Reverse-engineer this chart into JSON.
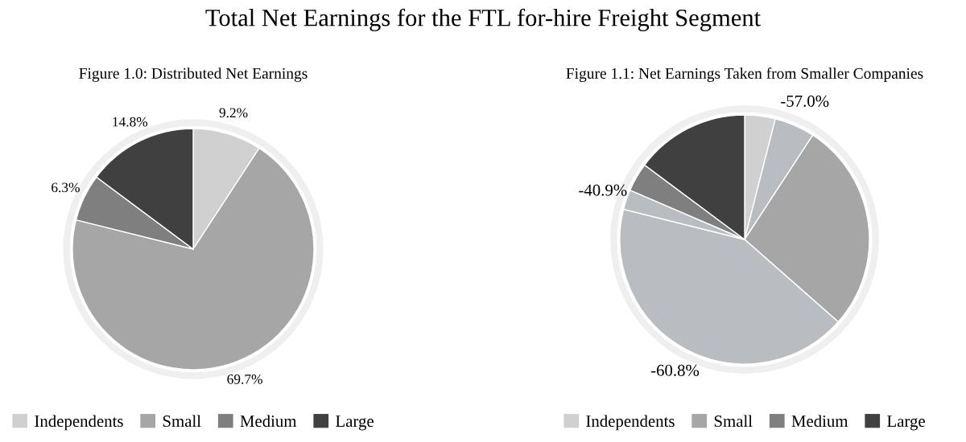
{
  "chart_data": [
    {
      "type": "pie",
      "title": "Total Net Earnings for the FTL for-hire Freight Segment",
      "subtitle": "Figure 1.0: Distributed Net Earnings",
      "categories": [
        "Independents",
        "Small",
        "Medium",
        "Large"
      ],
      "values": [
        9.2,
        69.7,
        6.3,
        14.8
      ],
      "colors": [
        "#d0d0d0",
        "#a6a6a6",
        "#7f7f7f",
        "#404040"
      ],
      "value_labels": [
        "9.2%",
        "69.7%",
        "6.3%",
        "14.8%"
      ],
      "legend": "bottom"
    },
    {
      "type": "pie",
      "subtitle": "Figure 1.1: Net Earnings Taken from Smaller Companies",
      "categories": [
        "Independents",
        null,
        "Small",
        null,
        null,
        "Medium",
        "Large"
      ],
      "values": [
        3.96,
        5.24,
        27.3,
        42.4,
        2.58,
        3.72,
        14.8
      ],
      "colors": [
        "#d0d0d0",
        "#b9bdc1",
        "#a6a6a6",
        "#b9bdc1",
        "#b9bdc1",
        "#7f7f7f",
        "#404040"
      ],
      "annotations": [
        "-57.0%",
        "-60.8%",
        "-40.9%"
      ],
      "legend": "bottom"
    }
  ]
}
